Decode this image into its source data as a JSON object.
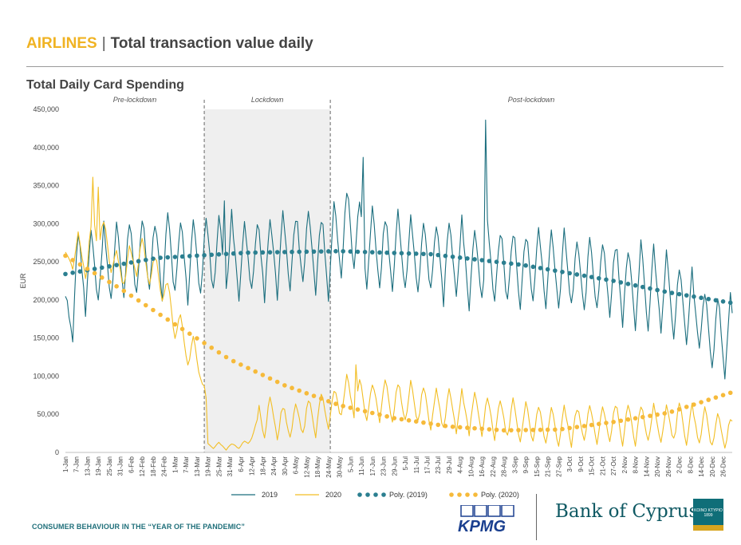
{
  "header": {
    "category": "AIRLINES",
    "separator": "|",
    "title": "Total transaction value daily"
  },
  "subtitle": "Total Daily Card Spending",
  "footer": {
    "text": "CONSUMER BEHAVIOUR IN THE “YEAR OF THE PANDEMIC”",
    "kpmg_label": "KPMG",
    "boc_label": "Bank of Cyprus",
    "seal_label": "KOINO KTYPIO 1899"
  },
  "colors": {
    "s2019": "#1B6E7E",
    "s2020": "#F2BE24",
    "poly2019": "#2B7F90",
    "poly2020": "#F6BA3A",
    "lockdown": "#efefef",
    "accent": "#F0B323"
  },
  "chart_data": {
    "type": "line",
    "title": "Total Daily Card Spending",
    "xlabel": "",
    "ylabel": "EUR",
    "ylim": [
      0,
      450000
    ],
    "yticks": [
      0,
      50000,
      100000,
      150000,
      200000,
      250000,
      300000,
      350000,
      400000,
      450000
    ],
    "ytick_labels": [
      "0",
      "50,000",
      "100,000",
      "150,000",
      "200,000",
      "250,000",
      "300,000",
      "350,000",
      "400,000",
      "450,000"
    ],
    "x_tick_labels": [
      "1-Jan",
      "7-Jan",
      "13-Jan",
      "19-Jan",
      "25-Jan",
      "31-Jan",
      "6-Feb",
      "12-Feb",
      "18-Feb",
      "24-Feb",
      "1-Mar",
      "7-Mar",
      "13-Mar",
      "19-Mar",
      "25-Mar",
      "31-Mar",
      "6-Apr",
      "12-Apr",
      "18-Apr",
      "24-Apr",
      "30-Apr",
      "6-May",
      "12-May",
      "18-May",
      "24-May",
      "30-May",
      "5-Jun",
      "11-Jun",
      "17-Jun",
      "23-Jun",
      "29-Jun",
      "5-Jul",
      "11-Jul",
      "17-Jul",
      "23-Jul",
      "29-Jul",
      "4-Aug",
      "10-Aug",
      "16-Aug",
      "22-Aug",
      "28-Aug",
      "3-Sep",
      "9-Sep",
      "15-Sep",
      "21-Sep",
      "27-Sep",
      "3-Oct",
      "9-Oct",
      "15-Oct",
      "21-Oct",
      "27-Oct",
      "2-Nov",
      "8-Nov",
      "14-Nov",
      "20-Nov",
      "26-Nov",
      "2-Dec",
      "8-Dec",
      "14-Dec",
      "20-Dec",
      "26-Dec"
    ],
    "tick_step_days": 6,
    "n_days": 366,
    "grid": false,
    "legend_position": "bottom",
    "periods": [
      {
        "label": "Pre-lockdown",
        "start_day": 0,
        "end_day": 76
      },
      {
        "label": "Lockdown",
        "start_day": 76,
        "end_day": 145,
        "shaded": true
      },
      {
        "label": "Post-lockdown",
        "start_day": 145,
        "end_day": 365
      }
    ],
    "series": [
      {
        "name": "2019",
        "key": "s2019",
        "style": "line",
        "anchors": [
          [
            0,
            150000
          ],
          [
            6,
            240000
          ],
          [
            12,
            245000
          ],
          [
            18,
            250000
          ],
          [
            24,
            248000
          ],
          [
            31,
            255000
          ],
          [
            37,
            258000
          ],
          [
            43,
            262000
          ],
          [
            49,
            262000
          ],
          [
            55,
            265000
          ],
          [
            60,
            262000
          ],
          [
            66,
            258000
          ],
          [
            72,
            260000
          ],
          [
            78,
            265000
          ],
          [
            84,
            262000
          ],
          [
            90,
            262000
          ],
          [
            96,
            260000
          ],
          [
            102,
            258000
          ],
          [
            108,
            262000
          ],
          [
            114,
            265000
          ],
          [
            120,
            268000
          ],
          [
            126,
            270000
          ],
          [
            132,
            270000
          ],
          [
            138,
            270000
          ],
          [
            144,
            262000
          ],
          [
            150,
            285000
          ],
          [
            156,
            300000
          ],
          [
            162,
            280000
          ],
          [
            168,
            270000
          ],
          [
            174,
            268000
          ],
          [
            180,
            265000
          ],
          [
            186,
            262000
          ],
          [
            192,
            262000
          ],
          [
            198,
            260000
          ],
          [
            204,
            258000
          ],
          [
            210,
            258000
          ],
          [
            216,
            255000
          ],
          [
            222,
            252000
          ],
          [
            228,
            250000
          ],
          [
            234,
            250000
          ],
          [
            240,
            250000
          ],
          [
            246,
            248000
          ],
          [
            252,
            245000
          ],
          [
            258,
            250000
          ],
          [
            264,
            248000
          ],
          [
            270,
            240000
          ],
          [
            276,
            240000
          ],
          [
            282,
            238000
          ],
          [
            288,
            235000
          ],
          [
            294,
            235000
          ],
          [
            300,
            232000
          ],
          [
            306,
            230000
          ],
          [
            312,
            225000
          ],
          [
            318,
            220000
          ],
          [
            324,
            215000
          ],
          [
            330,
            210000
          ],
          [
            336,
            205000
          ],
          [
            342,
            190000
          ],
          [
            348,
            180000
          ],
          [
            354,
            160000
          ],
          [
            360,
            155000
          ],
          [
            365,
            160000
          ]
        ],
        "amplitude": 50000,
        "peaks": [
          [
            230,
            436000
          ],
          [
            163,
            387000
          ],
          [
            87,
            330000
          ]
        ]
      },
      {
        "name": "2020",
        "key": "s2020",
        "style": "line",
        "anchors": [
          [
            0,
            240000
          ],
          [
            4,
            270000
          ],
          [
            8,
            260000
          ],
          [
            12,
            255000
          ],
          [
            16,
            300000
          ],
          [
            20,
            285000
          ],
          [
            24,
            270000
          ],
          [
            28,
            240000
          ],
          [
            34,
            245000
          ],
          [
            40,
            260000
          ],
          [
            46,
            245000
          ],
          [
            52,
            230000
          ],
          [
            58,
            190000
          ],
          [
            64,
            150000
          ],
          [
            70,
            125000
          ],
          [
            74,
            120000
          ],
          [
            76,
            80000
          ],
          [
            78,
            10000
          ],
          [
            90,
            8000
          ],
          [
            100,
            12000
          ],
          [
            106,
            45000
          ],
          [
            112,
            50000
          ],
          [
            120,
            40000
          ],
          [
            126,
            45000
          ],
          [
            134,
            50000
          ],
          [
            140,
            55000
          ],
          [
            146,
            60000
          ],
          [
            152,
            75000
          ],
          [
            158,
            75000
          ],
          [
            164,
            70000
          ],
          [
            170,
            72000
          ],
          [
            176,
            70000
          ],
          [
            182,
            68000
          ],
          [
            188,
            66000
          ],
          [
            194,
            65000
          ],
          [
            200,
            60000
          ],
          [
            206,
            58000
          ],
          [
            212,
            57000
          ],
          [
            218,
            55000
          ],
          [
            224,
            55000
          ],
          [
            230,
            50000
          ],
          [
            236,
            48000
          ],
          [
            242,
            46000
          ],
          [
            248,
            42000
          ],
          [
            254,
            40000
          ],
          [
            260,
            38000
          ],
          [
            266,
            36000
          ],
          [
            272,
            36000
          ],
          [
            278,
            38000
          ],
          [
            284,
            40000
          ],
          [
            290,
            40000
          ],
          [
            296,
            40000
          ],
          [
            302,
            42000
          ],
          [
            308,
            40000
          ],
          [
            314,
            40000
          ],
          [
            320,
            38000
          ],
          [
            326,
            38000
          ],
          [
            332,
            40000
          ],
          [
            338,
            40000
          ],
          [
            344,
            38000
          ],
          [
            350,
            35000
          ],
          [
            356,
            30000
          ],
          [
            360,
            30000
          ],
          [
            365,
            25000
          ]
        ],
        "amplitude": 25000,
        "peaks": [
          [
            15,
            361000
          ],
          [
            18,
            348000
          ],
          [
            159,
            115000
          ]
        ]
      },
      {
        "name": "Poly. (2019)",
        "key": "poly2019",
        "style": "dots",
        "anchors": [
          [
            0,
            234000
          ],
          [
            50,
            255000
          ],
          [
            100,
            262000
          ],
          [
            150,
            264000
          ],
          [
            200,
            260000
          ],
          [
            250,
            246000
          ],
          [
            300,
            225000
          ],
          [
            330,
            210000
          ],
          [
            365,
            196000
          ]
        ]
      },
      {
        "name": "Poly. (2020)",
        "key": "poly2020",
        "style": "dots",
        "anchors": [
          [
            0,
            258000
          ],
          [
            30,
            215000
          ],
          [
            60,
            168000
          ],
          [
            90,
            122000
          ],
          [
            120,
            88000
          ],
          [
            150,
            62000
          ],
          [
            180,
            45000
          ],
          [
            210,
            34000
          ],
          [
            240,
            29000
          ],
          [
            270,
            30000
          ],
          [
            300,
            40000
          ],
          [
            330,
            52000
          ],
          [
            365,
            79000
          ]
        ]
      }
    ]
  }
}
